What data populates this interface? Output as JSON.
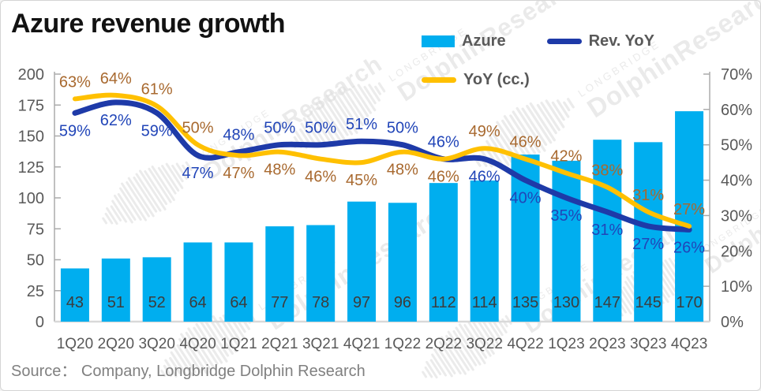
{
  "page": {
    "title": "Azure revenue growth",
    "source": "Source： Company, Longbridge Dolphin Research"
  },
  "legend": [
    {
      "label": "Azure",
      "type": "bar",
      "color": "#00AEEF"
    },
    {
      "label": "Rev. YoY",
      "type": "line",
      "color": "#1E3AA8"
    },
    {
      "label": "YoY (cc.)",
      "type": "line",
      "color": "#FFC000"
    }
  ],
  "watermark": {
    "brand": "LONGBRIDGE",
    "name": "DolphinResearch"
  },
  "colors": {
    "bar": "#00AEEF",
    "rev_yoy_line": "#1E3AA8",
    "rev_yoy_label": "#2145B8",
    "yoy_cc_line": "#FFC000",
    "yoy_cc_label": "#A8692F",
    "axis_text": "#595959",
    "bar_value_text": "#3C3C3C",
    "axis_line": "#ABABAB",
    "x_axis_line": "#D9D9D9"
  },
  "chart_data": {
    "type": "bar",
    "title": "Azure revenue growth",
    "categories": [
      "1Q20",
      "2Q20",
      "3Q20",
      "4Q20",
      "1Q21",
      "2Q21",
      "3Q21",
      "4Q21",
      "1Q22",
      "2Q22",
      "3Q22",
      "4Q22",
      "1Q23",
      "2Q23",
      "3Q23",
      "4Q23"
    ],
    "series": [
      {
        "name": "Azure",
        "type": "bar",
        "axis": "left",
        "color": "#00AEEF",
        "values": [
          43,
          51,
          52,
          64,
          64,
          77,
          78,
          97,
          96,
          112,
          114,
          135,
          130,
          147,
          145,
          170
        ]
      },
      {
        "name": "Rev. YoY",
        "type": "line",
        "axis": "right",
        "color": "#1E3AA8",
        "label_color": "#2145B8",
        "values": [
          59,
          62,
          59,
          47,
          48,
          50,
          50,
          51,
          50,
          46,
          46,
          40,
          35,
          31,
          27,
          26
        ],
        "label_pos": [
          "below",
          "below",
          "below",
          "below",
          "above",
          "above",
          "above",
          "above",
          "above",
          "above",
          "below",
          "below",
          "below",
          "below",
          "below",
          "below"
        ]
      },
      {
        "name": "YoY (cc.)",
        "type": "line",
        "axis": "right",
        "color": "#FFC000",
        "label_color": "#A8692F",
        "values": [
          63,
          64,
          61,
          50,
          47,
          48,
          46,
          45,
          48,
          46,
          49,
          46,
          42,
          38,
          31,
          27
        ],
        "label_pos": [
          "above",
          "above",
          "above",
          "above",
          "below",
          "below",
          "below",
          "below",
          "below",
          "below",
          "above",
          "above",
          "above",
          "above",
          "above",
          "above"
        ]
      }
    ],
    "left_axis": {
      "min": 0,
      "max": 200,
      "step": 25,
      "ticks": [
        "0",
        "25",
        "50",
        "75",
        "100",
        "125",
        "150",
        "175",
        "200"
      ]
    },
    "right_axis": {
      "min": 0,
      "max": 70,
      "step": 10,
      "ticks": [
        "0%",
        "10%",
        "20%",
        "30%",
        "40%",
        "50%",
        "60%",
        "70%"
      ]
    },
    "grid": false,
    "legend_position": "top-right"
  }
}
